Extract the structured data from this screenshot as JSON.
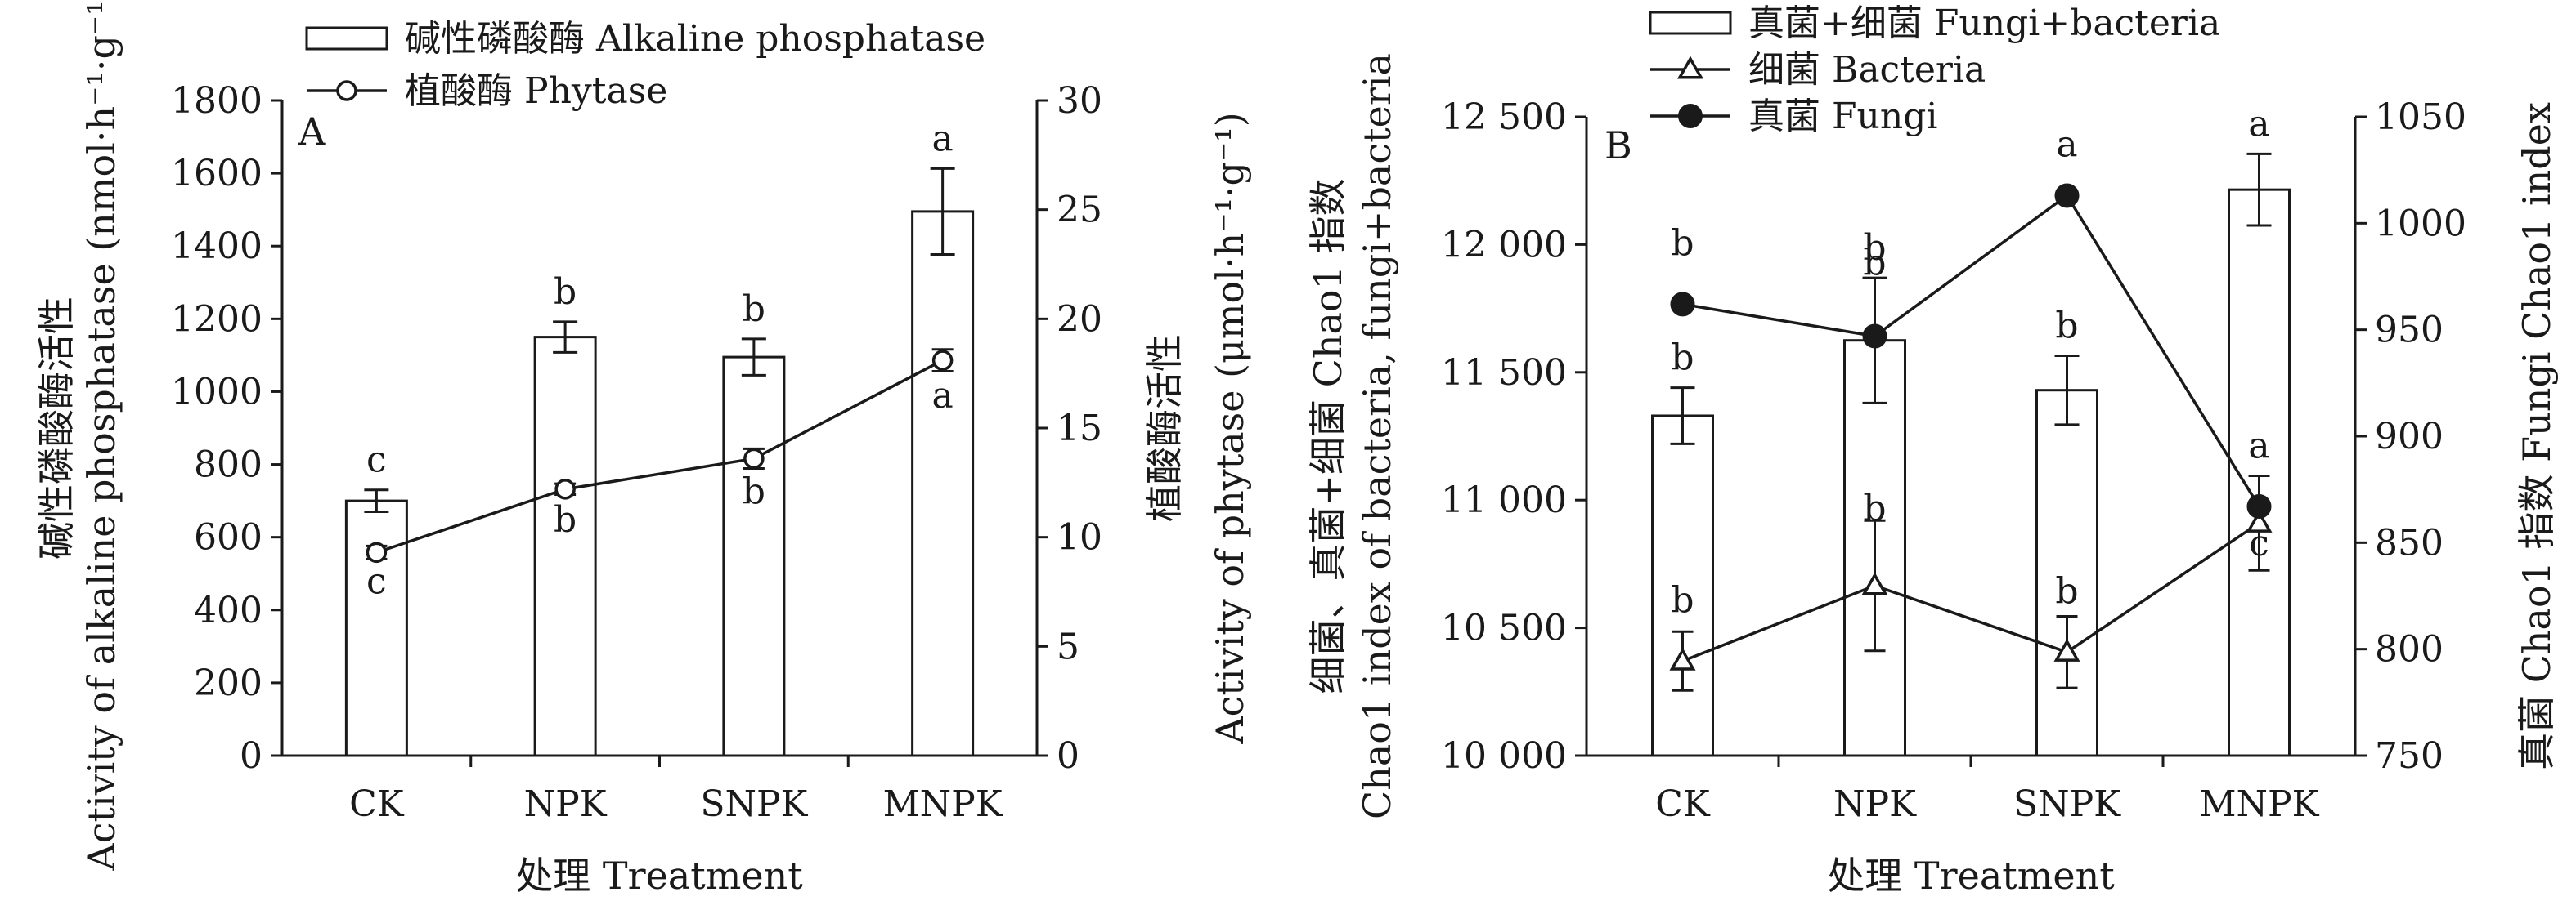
{
  "chart_data": [
    {
      "type": "bar",
      "panel": "A",
      "categories": [
        "CK",
        "NPK",
        "SNPK",
        "MNPK"
      ],
      "xlabel": "处理 Treatment",
      "ylabel_zh": "碱性磷酸酶活性",
      "ylabel_en": "Activity of alkaline phosphatase (nmol·h⁻¹·g⁻¹)",
      "y2label_zh": "植酸酶活性",
      "y2label_en": "Activity of phytase (μmol·h⁻¹·g⁻¹)",
      "ylim": [
        0,
        1800
      ],
      "yticks": [
        "0",
        "200",
        "400",
        "600",
        "800",
        "1000",
        "1200",
        "1400",
        "1600",
        "1800"
      ],
      "y2lim": [
        0,
        30
      ],
      "y2ticks": [
        "0",
        "5",
        "10",
        "15",
        "20",
        "25",
        "30"
      ],
      "legend_position": "top",
      "series": [
        {
          "name": "碱性磷酸酶 Alkaline phosphatase",
          "kind": "bar",
          "axis": "left",
          "values": [
            700,
            1150,
            1095,
            1495
          ],
          "errors": [
            30,
            42,
            50,
            118
          ],
          "letters": [
            "c",
            "b",
            "b",
            "a"
          ]
        },
        {
          "name": "植酸酶 Phytase",
          "kind": "line",
          "marker": "open-circle",
          "axis": "right",
          "values": [
            9.3,
            12.2,
            13.6,
            18.1
          ],
          "errors": [
            0.3,
            0.25,
            0.45,
            0.5
          ],
          "letters": [
            "c",
            "b",
            "b",
            "a"
          ]
        }
      ]
    },
    {
      "type": "bar",
      "panel": "B",
      "categories": [
        "CK",
        "NPK",
        "SNPK",
        "MNPK"
      ],
      "xlabel": "处理 Treatment",
      "ylabel_zh": "细菌、真菌+细菌 Chao1 指数",
      "ylabel_en": "Chao1 index of bacteria, fungi+bacteria",
      "y2label": "真菌 Chao1 指数 Fungi Chao1 index",
      "ylim": [
        10000,
        12500
      ],
      "yticks": [
        "10 000",
        "10 500",
        "11 000",
        "11 500",
        "12 000",
        "12 500"
      ],
      "y2lim": [
        750,
        1050
      ],
      "y2ticks": [
        "750",
        "800",
        "850",
        "900",
        "950",
        "1000",
        "1050"
      ],
      "legend_position": "top",
      "series": [
        {
          "name": "真菌+细菌 Fungi+bacteria",
          "kind": "bar",
          "axis": "left",
          "values": [
            11330,
            11625,
            11430,
            12215
          ],
          "errors": [
            110,
            245,
            135,
            140
          ],
          "letters": [
            "b",
            "b",
            "b",
            "a"
          ]
        },
        {
          "name": "细菌 Bacteria",
          "kind": "line",
          "marker": "open-triangle",
          "axis": "left",
          "values": [
            10370,
            10665,
            10405,
            10910
          ],
          "errors": [
            115,
            255,
            140,
            185
          ],
          "letters": [
            "b",
            "b",
            "b",
            "a"
          ]
        },
        {
          "name": "真菌 Fungi",
          "kind": "line",
          "marker": "filled-circle",
          "axis": "right",
          "values": [
            962,
            947,
            1013,
            867
          ],
          "errors": [
            0,
            0,
            0,
            0
          ],
          "letters": [
            "b",
            "b",
            "a",
            "c"
          ]
        }
      ]
    }
  ]
}
